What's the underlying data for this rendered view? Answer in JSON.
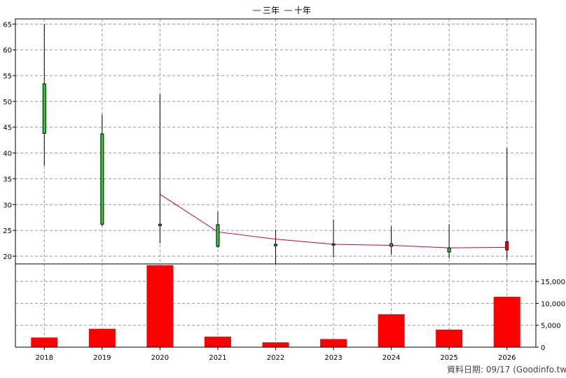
{
  "chart_data": [
    {
      "type": "candlestick",
      "x": [
        "2018",
        "2019",
        "2020",
        "2021",
        "2022",
        "2023",
        "2024",
        "2025",
        "2026"
      ],
      "open": [
        43.8,
        26.2,
        26.1,
        21.9,
        22.0,
        22.3,
        21.9,
        20.8,
        22.8
      ],
      "high": [
        65.0,
        47.5,
        51.4,
        28.6,
        25.1,
        27.1,
        25.8,
        26.2,
        41.0
      ],
      "low": [
        37.5,
        25.8,
        22.5,
        21.6,
        18.5,
        19.7,
        20.3,
        19.6,
        19.3
      ],
      "close": [
        53.4,
        43.7,
        26.2,
        26.1,
        22.3,
        22.4,
        22.4,
        21.6,
        21.2
      ],
      "colors": {
        "up": "#32cd32",
        "down": "#ff0000",
        "wick": "#000000"
      },
      "series": [
        {
          "name": "三年",
          "color": "#cc0033",
          "values": [
            null,
            null,
            32.0,
            24.7,
            23.3,
            22.3,
            22.1,
            21.6,
            21.7
          ]
        },
        {
          "name": "十年",
          "color": "#6a0dad",
          "values": [
            null,
            null,
            null,
            null,
            null,
            null,
            null,
            null,
            null
          ]
        }
      ],
      "ylim": [
        18.5,
        66
      ],
      "yticks": [
        "20",
        "25",
        "30",
        "35",
        "40",
        "45",
        "50",
        "55",
        "60",
        "65"
      ],
      "ytick_values": [
        20,
        25,
        30,
        35,
        40,
        45,
        50,
        55,
        60,
        65
      ],
      "grid": true,
      "legend": "top-center"
    },
    {
      "type": "bar",
      "categories": [
        "2018",
        "2019",
        "2020",
        "2021",
        "2022",
        "2023",
        "2024",
        "2025",
        "2026"
      ],
      "values": [
        2200,
        4200,
        18700,
        2400,
        1100,
        1850,
        7500,
        4000,
        11500
      ],
      "color": "#ff0000",
      "ylim": [
        0,
        19000
      ],
      "yticks": [
        "0",
        "5,000",
        "10,000",
        "15,000"
      ],
      "ytick_values": [
        0,
        5000,
        10000,
        15000
      ],
      "grid": true
    }
  ],
  "footer": {
    "source_text": "資料日期: 09/17  (Goodinfo.tw)"
  }
}
